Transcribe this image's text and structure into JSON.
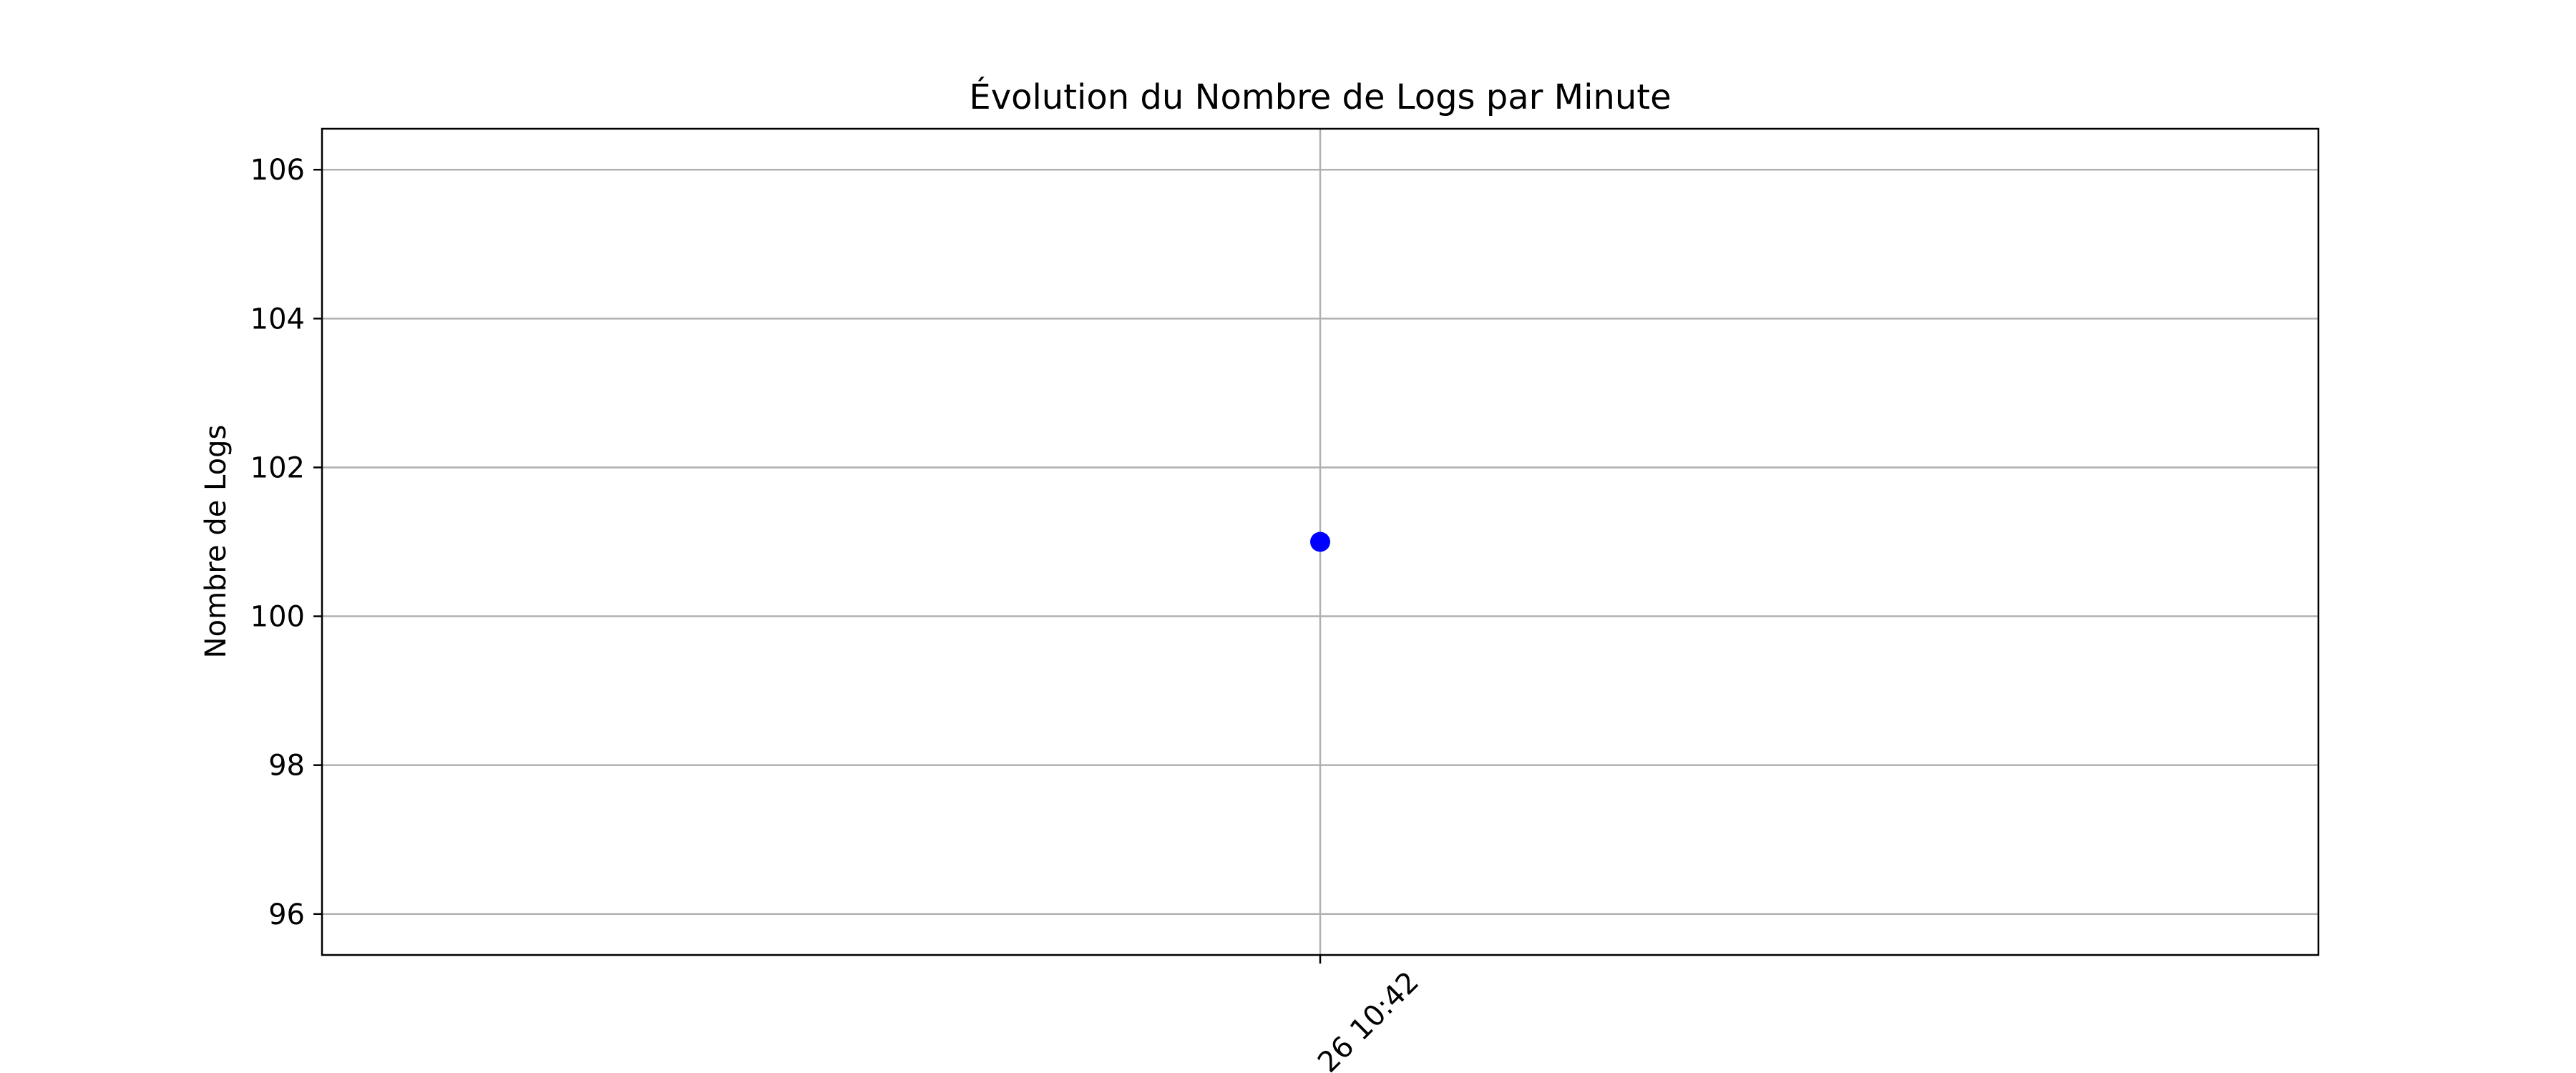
{
  "chart_data": {
    "type": "scatter",
    "title": "Évolution du Nombre de Logs par Minute",
    "xlabel": "",
    "ylabel": "Nombre de Logs",
    "x_tick_labels": [
      "26 10:42"
    ],
    "y_ticks": [
      96,
      98,
      100,
      102,
      104,
      106
    ],
    "ylim": [
      95.45,
      106.55
    ],
    "grid": true,
    "legend": "none",
    "series": [
      {
        "color": "#0000ff",
        "points": [
          {
            "x": "26 10:42",
            "y": 101
          }
        ]
      }
    ]
  }
}
